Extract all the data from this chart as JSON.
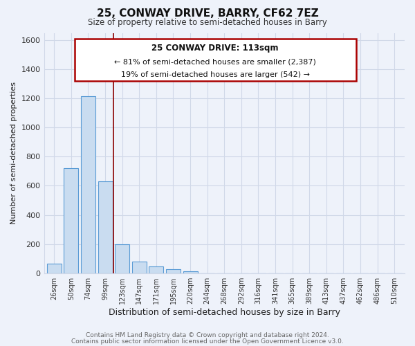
{
  "title": "25, CONWAY DRIVE, BARRY, CF62 7EZ",
  "subtitle": "Size of property relative to semi-detached houses in Barry",
  "xlabel": "Distribution of semi-detached houses by size in Barry",
  "ylabel": "Number of semi-detached properties",
  "bar_labels": [
    "26sqm",
    "50sqm",
    "74sqm",
    "99sqm",
    "123sqm",
    "147sqm",
    "171sqm",
    "195sqm",
    "220sqm",
    "244sqm",
    "268sqm",
    "292sqm",
    "316sqm",
    "341sqm",
    "365sqm",
    "389sqm",
    "413sqm",
    "437sqm",
    "462sqm",
    "486sqm",
    "510sqm"
  ],
  "bar_values": [
    65,
    720,
    1215,
    630,
    200,
    80,
    45,
    25,
    15,
    0,
    0,
    0,
    0,
    0,
    0,
    0,
    0,
    0,
    0,
    0,
    0
  ],
  "bar_color": "#c9dcf0",
  "bar_edge_color": "#5a9bd5",
  "annotation_title": "25 CONWAY DRIVE: 113sqm",
  "annotation_line1": "← 81% of semi-detached houses are smaller (2,387)",
  "annotation_line2": "19% of semi-detached houses are larger (542) →",
  "annotation_box_color": "#ffffff",
  "annotation_box_edge_color": "#aa0000",
  "ylim": [
    0,
    1650
  ],
  "yticks": [
    0,
    200,
    400,
    600,
    800,
    1000,
    1200,
    1400,
    1600
  ],
  "background_color": "#eef2fa",
  "grid_color": "#d0d8e8",
  "vertical_line_x": 3.5,
  "vertical_line_color": "#8b0000",
  "footer_line1": "Contains HM Land Registry data © Crown copyright and database right 2024.",
  "footer_line2": "Contains public sector information licensed under the Open Government Licence v3.0."
}
